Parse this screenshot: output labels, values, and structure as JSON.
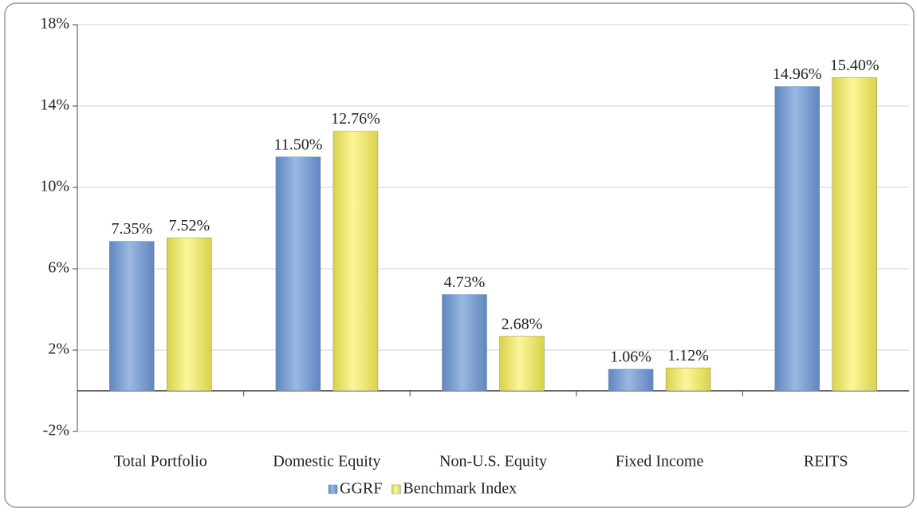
{
  "chart_data": {
    "type": "bar",
    "categories": [
      "Total Portfolio",
      "Domestic Equity",
      "Non-U.S. Equity",
      "Fixed Income",
      "REITS"
    ],
    "series": [
      {
        "name": "GGRF",
        "color": "#7fa3d6",
        "values": [
          7.35,
          11.5,
          4.73,
          1.06,
          14.96
        ],
        "value_labels": [
          "7.35%",
          "11.50%",
          "4.73%",
          "1.06%",
          "14.96%"
        ]
      },
      {
        "name": "Benchmark Index",
        "color": "#f2ee72",
        "values": [
          7.52,
          12.76,
          2.68,
          1.12,
          15.4
        ],
        "value_labels": [
          "7.52%",
          "12.76%",
          "2.68%",
          "1.12%",
          "15.40%"
        ]
      }
    ],
    "ylim": [
      -2,
      18
    ],
    "yticks": [
      {
        "value": -2,
        "label": "-2%"
      },
      {
        "value": 2,
        "label": "2%"
      },
      {
        "value": 6,
        "label": "6%"
      },
      {
        "value": 10,
        "label": "10%"
      },
      {
        "value": 14,
        "label": "14%"
      },
      {
        "value": 18,
        "label": "18%"
      }
    ],
    "grid": true,
    "legend": "bottom"
  }
}
